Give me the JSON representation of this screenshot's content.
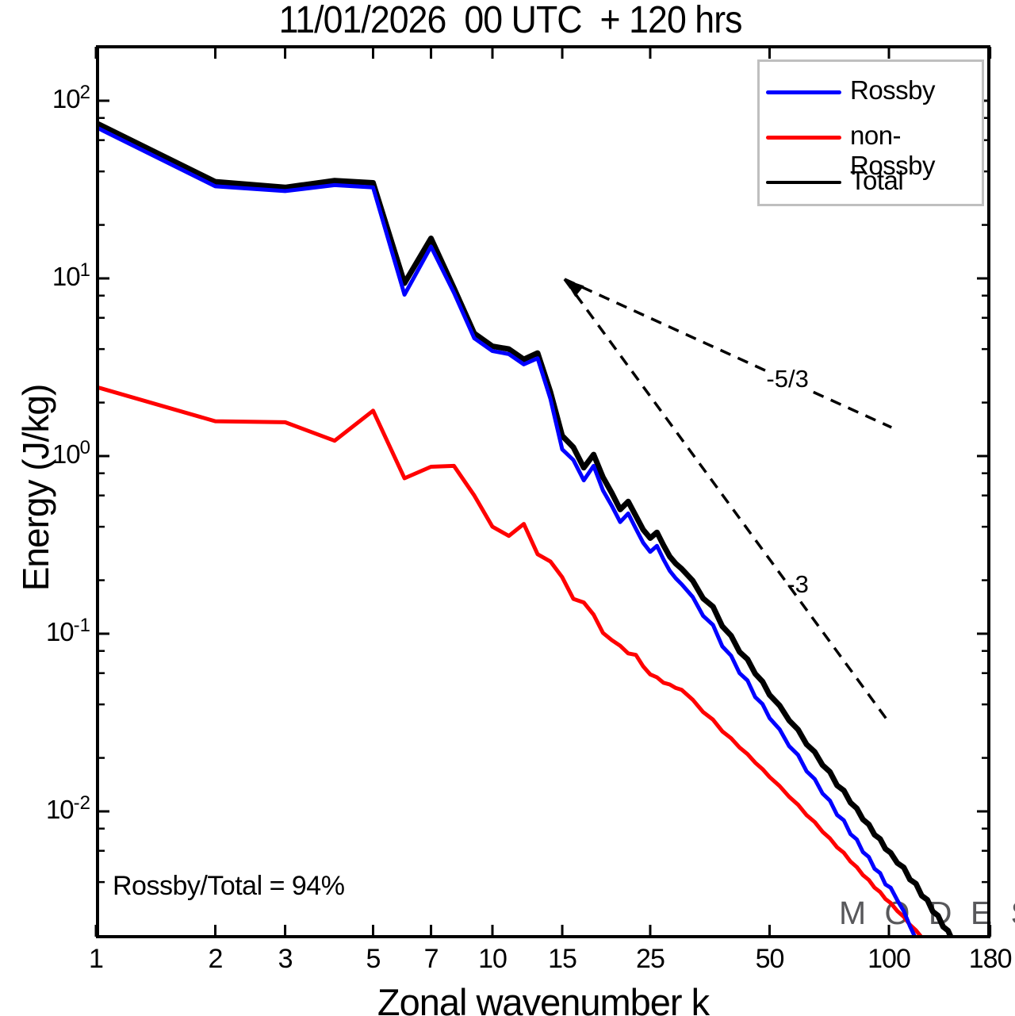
{
  "title": "11/01/2026  00 UTC  + 120 hrs",
  "axes": {
    "x": {
      "label": "Zonal wavenumber k",
      "scale": "log",
      "min": 1,
      "max": 180,
      "ticks": [
        1,
        2,
        3,
        5,
        7,
        10,
        15,
        25,
        50,
        100,
        180
      ]
    },
    "y": {
      "label": "Energy (J/kg)",
      "scale": "log",
      "min": 0.00193,
      "max": 205,
      "tick_exponents": [
        2,
        1,
        0,
        -1,
        -2
      ],
      "tick_base": "10",
      "minor_mantissas": [
        2,
        4,
        6,
        8
      ]
    }
  },
  "legend": {
    "items": [
      {
        "label": "Rossby",
        "color": "#0000ff"
      },
      {
        "label": "non-Rossby",
        "color": "#ff0000"
      },
      {
        "label": "Total",
        "color": "#000000"
      }
    ]
  },
  "annotations": {
    "ratio_text": "Rossby/Total = 94%",
    "watermark_text": "M O D E S",
    "watermark_mark": "©"
  },
  "chart_data": {
    "type": "line",
    "xlabel": "Zonal wavenumber k",
    "ylabel": "Energy (J/kg)",
    "xlim": [
      1,
      180
    ],
    "ylim": [
      0.00193,
      205
    ],
    "xscale": "log",
    "yscale": "log",
    "grid": false,
    "legend_position": "top-right",
    "series": [
      {
        "name": "Total",
        "color": "#000000",
        "width": 7,
        "points": [
          [
            1,
            75
          ],
          [
            2,
            35
          ],
          [
            3,
            32.5
          ],
          [
            4,
            35.5
          ],
          [
            5,
            34.5
          ],
          [
            6,
            9.4
          ],
          [
            7,
            16.8
          ],
          [
            8,
            8.8
          ],
          [
            9,
            4.9
          ],
          [
            10,
            4.15
          ],
          [
            11,
            4.0
          ],
          [
            12,
            3.5
          ],
          [
            13,
            3.8
          ],
          [
            14,
            2.3
          ],
          [
            15,
            1.3
          ],
          [
            16,
            1.12
          ],
          [
            17,
            0.86
          ],
          [
            18,
            1.02
          ],
          [
            19,
            0.76
          ],
          [
            20,
            0.62
          ],
          [
            21,
            0.5
          ],
          [
            22,
            0.555
          ],
          [
            23,
            0.46
          ],
          [
            24,
            0.385
          ],
          [
            25,
            0.345
          ],
          [
            26,
            0.372
          ],
          [
            27,
            0.315
          ],
          [
            28,
            0.272
          ],
          [
            29,
            0.248
          ],
          [
            30,
            0.232
          ],
          [
            32,
            0.199
          ],
          [
            34,
            0.158
          ],
          [
            36,
            0.142
          ],
          [
            38,
            0.11
          ],
          [
            40,
            0.0975
          ],
          [
            42,
            0.079
          ],
          [
            44,
            0.0718
          ],
          [
            46,
            0.0595
          ],
          [
            48,
            0.0538
          ],
          [
            50,
            0.0452
          ],
          [
            53,
            0.0395
          ],
          [
            56,
            0.0325
          ],
          [
            59,
            0.0289
          ],
          [
            62,
            0.0238
          ],
          [
            65,
            0.0216
          ],
          [
            68,
            0.0182
          ],
          [
            71,
            0.0167
          ],
          [
            74,
            0.014
          ],
          [
            77,
            0.0131
          ],
          [
            80,
            0.0112
          ],
          [
            83,
            0.0104
          ],
          [
            86,
            0.009
          ],
          [
            89,
            0.00845
          ],
          [
            92,
            0.00738
          ],
          [
            95,
            0.007
          ],
          [
            98,
            0.00615
          ],
          [
            101,
            0.00585
          ],
          [
            105,
            0.00512
          ],
          [
            109,
            0.00484
          ],
          [
            113,
            0.00413
          ],
          [
            117,
            0.00392
          ],
          [
            121,
            0.00335
          ],
          [
            125,
            0.00318
          ],
          [
            129,
            0.00273
          ],
          [
            133,
            0.00259
          ],
          [
            137,
            0.00224
          ],
          [
            141,
            0.00213
          ],
          [
            145,
            0.00185
          ],
          [
            149,
            0.00177
          ],
          [
            153,
            0.00154
          ],
          [
            157,
            0.00148
          ],
          [
            161,
            0.00129
          ],
          [
            165,
            0.00124
          ],
          [
            170,
            0.00108
          ],
          [
            175,
            0.00104
          ],
          [
            180,
            0.00091
          ]
        ]
      },
      {
        "name": "Rossby",
        "color": "#0000ff",
        "width": 5,
        "points": [
          [
            1,
            71
          ],
          [
            2,
            33
          ],
          [
            3,
            31
          ],
          [
            4,
            33.5
          ],
          [
            5,
            32.5
          ],
          [
            6,
            8.1
          ],
          [
            7,
            15.1
          ],
          [
            8,
            8.3
          ],
          [
            9,
            4.6
          ],
          [
            10,
            3.9
          ],
          [
            11,
            3.75
          ],
          [
            12,
            3.28
          ],
          [
            13,
            3.55
          ],
          [
            14,
            2.1
          ],
          [
            15,
            1.09
          ],
          [
            16,
            0.95
          ],
          [
            17,
            0.73
          ],
          [
            18,
            0.88
          ],
          [
            19,
            0.64
          ],
          [
            20,
            0.525
          ],
          [
            21,
            0.425
          ],
          [
            22,
            0.475
          ],
          [
            23,
            0.39
          ],
          [
            24,
            0.325
          ],
          [
            25,
            0.289
          ],
          [
            26,
            0.312
          ],
          [
            27,
            0.262
          ],
          [
            28,
            0.226
          ],
          [
            29,
            0.205
          ],
          [
            30,
            0.19
          ],
          [
            32,
            0.161
          ],
          [
            34,
            0.126
          ],
          [
            36,
            0.112
          ],
          [
            38,
            0.0848
          ],
          [
            40,
            0.0752
          ],
          [
            42,
            0.06
          ],
          [
            44,
            0.0545
          ],
          [
            46,
            0.044
          ],
          [
            48,
            0.0402
          ],
          [
            50,
            0.0335
          ],
          [
            53,
            0.029
          ],
          [
            56,
            0.0233
          ],
          [
            59,
            0.0208
          ],
          [
            62,
            0.0168
          ],
          [
            65,
            0.0152
          ],
          [
            68,
            0.0126
          ],
          [
            71,
            0.0115
          ],
          [
            74,
            0.00955
          ],
          [
            77,
            0.0089
          ],
          [
            80,
            0.00745
          ],
          [
            83,
            0.00695
          ],
          [
            86,
            0.0059
          ],
          [
            89,
            0.00553
          ],
          [
            92,
            0.00475
          ],
          [
            95,
            0.0045
          ],
          [
            98,
            0.00388
          ],
          [
            101,
            0.00372
          ],
          [
            105,
            0.00316
          ],
          [
            109,
            0.00275
          ],
          [
            113,
            0.00226
          ],
          [
            117,
            0.00191
          ],
          [
            121,
            0.00156
          ],
          [
            125,
            0.00128
          ]
        ]
      },
      {
        "name": "non-Rossby",
        "color": "#ff0000",
        "width": 5,
        "points": [
          [
            1,
            2.45
          ],
          [
            2,
            1.57
          ],
          [
            3,
            1.55
          ],
          [
            4,
            1.22
          ],
          [
            5,
            1.8
          ],
          [
            6,
            0.75
          ],
          [
            7,
            0.87
          ],
          [
            8,
            0.88
          ],
          [
            9,
            0.6
          ],
          [
            10,
            0.4
          ],
          [
            11,
            0.355
          ],
          [
            12,
            0.415
          ],
          [
            13,
            0.28
          ],
          [
            14,
            0.255
          ],
          [
            15,
            0.208
          ],
          [
            16,
            0.157
          ],
          [
            17,
            0.15
          ],
          [
            18,
            0.128
          ],
          [
            19,
            0.101
          ],
          [
            20,
            0.092
          ],
          [
            21,
            0.0855
          ],
          [
            22,
            0.0775
          ],
          [
            23,
            0.076
          ],
          [
            24,
            0.0655
          ],
          [
            25,
            0.059
          ],
          [
            26,
            0.0568
          ],
          [
            27,
            0.053
          ],
          [
            28,
            0.0518
          ],
          [
            29,
            0.0495
          ],
          [
            30,
            0.0483
          ],
          [
            32,
            0.0425
          ],
          [
            34,
            0.0362
          ],
          [
            36,
            0.0328
          ],
          [
            38,
            0.0282
          ],
          [
            40,
            0.0258
          ],
          [
            42,
            0.0229
          ],
          [
            44,
            0.021
          ],
          [
            46,
            0.0188
          ],
          [
            48,
            0.0173
          ],
          [
            50,
            0.0156
          ],
          [
            53,
            0.0139
          ],
          [
            56,
            0.0121
          ],
          [
            59,
            0.0109
          ],
          [
            62,
            0.00952
          ],
          [
            65,
            0.0087
          ],
          [
            68,
            0.00768
          ],
          [
            71,
            0.00705
          ],
          [
            74,
            0.00628
          ],
          [
            77,
            0.00585
          ],
          [
            80,
            0.00522
          ],
          [
            83,
            0.00486
          ],
          [
            86,
            0.00438
          ],
          [
            89,
            0.00411
          ],
          [
            92,
            0.00372
          ],
          [
            95,
            0.00352
          ],
          [
            98,
            0.00321
          ],
          [
            101,
            0.00305
          ],
          [
            105,
            0.00275
          ],
          [
            109,
            0.00255
          ],
          [
            113,
            0.0023
          ],
          [
            117,
            0.00214
          ],
          [
            121,
            0.00195
          ],
          [
            125,
            0.00181
          ],
          [
            129,
            0.00164
          ],
          [
            133,
            0.00153
          ]
        ]
      }
    ],
    "reference_lines": [
      {
        "label": "-5/3",
        "style": "dashed",
        "arrow_at_start": true,
        "segments": [
          [
            [
              15.2,
              9.9
            ],
            [
              48.8,
              3.03
            ]
          ],
          [
            [
              64.5,
              2.29
            ],
            [
              101.5,
              1.45
            ]
          ]
        ],
        "label_at": [
          55.5,
          2.72
        ]
      },
      {
        "label": "-3",
        "style": "dashed",
        "arrow_at_start": false,
        "segments": [
          [
            [
              15.2,
              9.9
            ],
            [
              99.5,
              0.0322
            ]
          ]
        ],
        "label_at": [
          58.9,
          0.19
        ]
      }
    ]
  }
}
